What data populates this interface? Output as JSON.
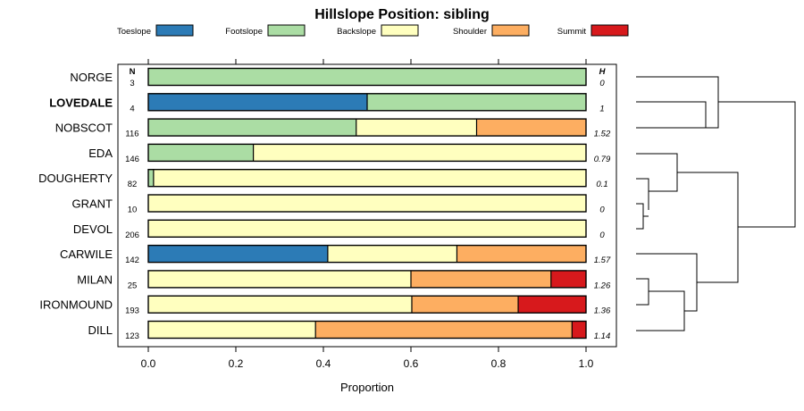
{
  "chart_data": {
    "type": "bar",
    "orientation": "horizontal",
    "stacked": true,
    "title": "Hillslope Position: sibling",
    "xlabel": "Proportion",
    "ylabel": "",
    "xlim": [
      0,
      1
    ],
    "xticks": [
      "0.0",
      "0.2",
      "0.4",
      "0.6",
      "0.8",
      "1.0"
    ],
    "n_header": "N",
    "h_header": "H",
    "legend": [
      {
        "name": "Toeslope",
        "color": "#2c7bb6"
      },
      {
        "name": "Footslope",
        "color": "#abdda4"
      },
      {
        "name": "Backslope",
        "color": "#ffffbf"
      },
      {
        "name": "Shoulder",
        "color": "#fdae61"
      },
      {
        "name": "Summit",
        "color": "#d7191c"
      }
    ],
    "categories": [
      "NORGE",
      "LOVEDALE",
      "NOBSCOT",
      "EDA",
      "DOUGHERTY",
      "GRANT",
      "DEVOL",
      "CARWILE",
      "MILAN",
      "IRONMOUND",
      "DILL"
    ],
    "highlight": "LOVEDALE",
    "n": [
      "3",
      "4",
      "116",
      "146",
      "82",
      "10",
      "206",
      "142",
      "25",
      "193",
      "123"
    ],
    "h": [
      "0",
      "1",
      "1.52",
      "0.79",
      "0.1",
      "0",
      "0",
      "1.57",
      "1.26",
      "1.36",
      "1.14"
    ],
    "series": [
      {
        "name": "Toeslope",
        "values": [
          0,
          0.5,
          0,
          0,
          0,
          0,
          0,
          0.41,
          0,
          0,
          0
        ]
      },
      {
        "name": "Footslope",
        "values": [
          1,
          0.5,
          0.475,
          0.24,
          0.012,
          0,
          0,
          0,
          0,
          0,
          0
        ]
      },
      {
        "name": "Backslope",
        "values": [
          0,
          0,
          0.275,
          0.76,
          0.988,
          1,
          1,
          0.295,
          0.6,
          0.602,
          0.382
        ]
      },
      {
        "name": "Shoulder",
        "values": [
          0,
          0,
          0.25,
          0,
          0,
          0,
          0,
          0.295,
          0.32,
          0.243,
          0.586
        ]
      },
      {
        "name": "Summit",
        "values": [
          0,
          0,
          0,
          0,
          0,
          0,
          0,
          0,
          0.08,
          0.155,
          0.032
        ]
      }
    ]
  }
}
